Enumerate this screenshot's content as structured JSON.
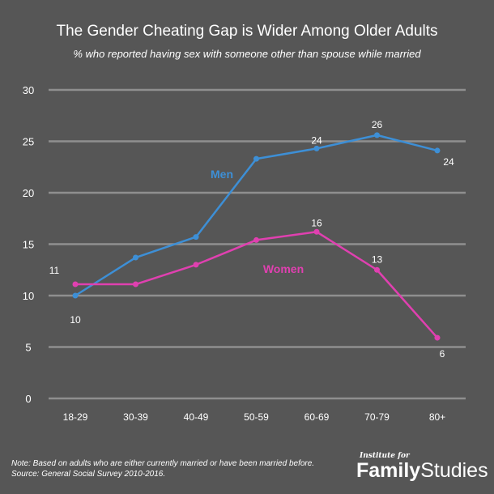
{
  "title": "The Gender Cheating Gap is Wider Among Older Adults",
  "subtitle": "% who reported having sex with someone other than spouse while married",
  "note_line1": "Note: Based on adults who are either currently married or have been married before.",
  "note_line2": "Source: General Social Survey 2010-2016.",
  "logo": {
    "small": "Institute for",
    "family": "Family",
    "studies": "Studies"
  },
  "chart_data": {
    "type": "line",
    "categories": [
      "18-29",
      "30-39",
      "40-49",
      "50-59",
      "60-69",
      "70-79",
      "80+"
    ],
    "ylim": [
      0,
      30
    ],
    "yticks": [
      0,
      5,
      10,
      15,
      20,
      25,
      30
    ],
    "grid": true,
    "series": [
      {
        "name": "Men",
        "color": "#3d8fd6",
        "values": [
          10,
          13.7,
          15.7,
          23.3,
          24.3,
          25.6,
          24.1
        ],
        "labels": [
          "10",
          "",
          "",
          "",
          "24",
          "26",
          "24"
        ]
      },
      {
        "name": "Women",
        "color": "#e040b0",
        "values": [
          11.1,
          11.1,
          13,
          15.4,
          16.2,
          12.5,
          5.9
        ],
        "labels": [
          "11",
          "",
          "",
          "",
          "16",
          "13",
          "6"
        ]
      }
    ]
  }
}
